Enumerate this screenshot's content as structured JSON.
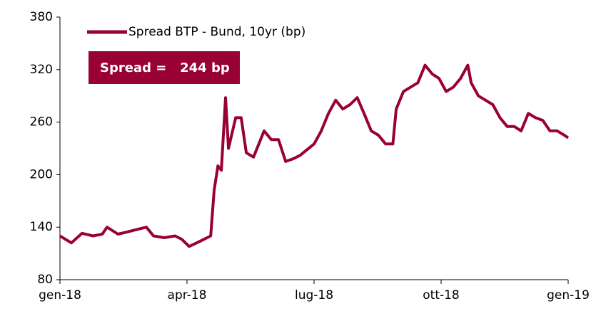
{
  "chart_data": {
    "type": "line",
    "annotation": "Spread =   244 bp",
    "x": [
      0,
      0.27,
      0.52,
      0.78,
      1.0,
      1.11,
      1.37,
      1.62,
      1.87,
      2.04,
      2.21,
      2.46,
      2.72,
      2.88,
      3.05,
      3.31,
      3.56,
      3.64,
      3.73,
      3.81,
      3.91,
      3.98,
      4.15,
      4.28,
      4.4,
      4.57,
      4.82,
      4.99,
      5.16,
      5.33,
      5.5,
      5.67,
      6.0,
      6.17,
      6.34,
      6.51,
      6.68,
      6.85,
      7.02,
      7.18,
      7.35,
      7.52,
      7.69,
      7.86,
      7.94,
      8.11,
      8.28,
      8.45,
      8.62,
      8.79,
      8.95,
      9.12,
      9.29,
      9.46,
      9.63,
      9.71,
      9.88,
      10.05,
      10.22,
      10.39,
      10.56,
      10.73,
      10.89,
      11.06,
      11.23,
      11.4,
      11.57,
      11.74,
      11.91,
      12.0
    ],
    "series": [
      {
        "name": "Spread BTP - Bund, 10yr (bp)",
        "color": "#990033",
        "values": [
          130,
          122,
          133,
          130,
          132,
          140,
          132,
          135,
          138,
          140,
          130,
          128,
          130,
          126,
          118,
          124,
          130,
          182,
          210,
          205,
          288,
          230,
          265,
          265,
          225,
          220,
          250,
          240,
          240,
          215,
          218,
          222,
          235,
          250,
          270,
          285,
          275,
          280,
          288,
          270,
          250,
          245,
          235,
          235,
          275,
          295,
          300,
          305,
          325,
          315,
          310,
          295,
          300,
          310,
          325,
          305,
          290,
          285,
          280,
          265,
          255,
          255,
          250,
          270,
          265,
          262,
          250,
          250,
          245,
          242
        ]
      }
    ],
    "xlim": [
      0,
      12
    ],
    "xticks": [
      {
        "value": 0,
        "label": "gen-18"
      },
      {
        "value": 3,
        "label": "apr-18"
      },
      {
        "value": 6,
        "label": "lug-18"
      },
      {
        "value": 9,
        "label": "ott-18"
      },
      {
        "value": 12,
        "label": "gen-19"
      }
    ],
    "ylim": [
      80,
      380
    ],
    "yticks": [
      80,
      140,
      200,
      260,
      320,
      380
    ]
  }
}
